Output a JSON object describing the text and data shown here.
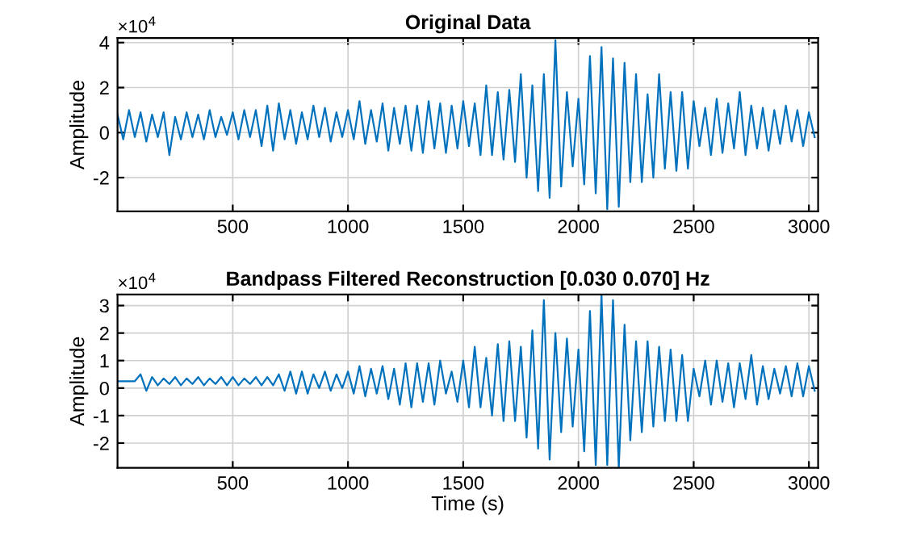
{
  "chart_data": [
    {
      "type": "line",
      "title": "Original Data",
      "ylabel": "Amplitude",
      "annotations": [
        "×10$^{4}$"
      ],
      "x": [
        0,
        25,
        50,
        75,
        100,
        125,
        150,
        175,
        200,
        225,
        250,
        275,
        300,
        325,
        350,
        375,
        400,
        425,
        450,
        475,
        500,
        525,
        550,
        575,
        600,
        625,
        650,
        675,
        700,
        725,
        750,
        775,
        800,
        825,
        850,
        875,
        900,
        925,
        950,
        975,
        1000,
        1025,
        1050,
        1075,
        1100,
        1125,
        1150,
        1175,
        1200,
        1225,
        1250,
        1275,
        1300,
        1325,
        1350,
        1375,
        1400,
        1425,
        1450,
        1475,
        1500,
        1525,
        1550,
        1575,
        1600,
        1625,
        1650,
        1675,
        1700,
        1725,
        1750,
        1775,
        1800,
        1825,
        1850,
        1875,
        1900,
        1925,
        1950,
        1975,
        2000,
        2025,
        2050,
        2075,
        2100,
        2125,
        2150,
        2175,
        2200,
        2225,
        2250,
        2275,
        2300,
        2325,
        2350,
        2375,
        2400,
        2425,
        2450,
        2475,
        2500,
        2525,
        2550,
        2575,
        2600,
        2625,
        2650,
        2675,
        2700,
        2725,
        2750,
        2775,
        2800,
        2825,
        2850,
        2875,
        2900,
        2925,
        2950,
        2975,
        3000,
        3025
      ],
      "series": [
        {
          "color": "#0072bd",
          "values": [
            0.8,
            -0.3,
            1.0,
            -0.2,
            0.9,
            -0.4,
            0.8,
            -0.2,
            0.9,
            -1.0,
            0.7,
            -0.3,
            0.9,
            -0.2,
            0.8,
            -0.3,
            1.0,
            -0.2,
            0.7,
            -0.1,
            0.9,
            -0.3,
            1.0,
            -0.2,
            1.0,
            -0.6,
            1.2,
            -0.8,
            1.3,
            -0.3,
            1.0,
            -0.5,
            0.9,
            -0.3,
            1.2,
            -0.2,
            1.1,
            -0.4,
            0.9,
            -0.2,
            1.0,
            -0.3,
            1.4,
            -0.5,
            1.0,
            -0.4,
            1.3,
            -0.8,
            1.1,
            -0.5,
            1.2,
            -0.8,
            1.2,
            -0.9,
            1.4,
            -0.7,
            1.3,
            -0.9,
            1.2,
            -0.7,
            1.4,
            -0.6,
            1.3,
            -1.0,
            2.1,
            -1.0,
            1.8,
            -1.2,
            1.9,
            -1.3,
            2.6,
            -2.0,
            2.1,
            -2.6,
            2.6,
            -2.9,
            4.1,
            -2.4,
            1.8,
            -1.5,
            1.5,
            -2.3,
            3.4,
            -2.7,
            3.8,
            -3.4,
            3.3,
            -3.3,
            3.1,
            -2.2,
            2.6,
            -2.2,
            1.7,
            -2.0,
            2.6,
            -1.6,
            1.8,
            -1.7,
            1.8,
            -1.6,
            1.4,
            -0.6,
            1.1,
            -1.0,
            1.5,
            -0.9,
            1.3,
            -0.7,
            1.8,
            -1.0,
            1.2,
            -0.7,
            1.1,
            -0.8,
            1.0,
            -0.5,
            1.2,
            -0.4,
            1.0,
            -0.6,
            0.9,
            -0.2
          ]
        }
      ],
      "xlim": [
        0,
        3040
      ],
      "xticks": [
        500,
        1000,
        1500,
        2000,
        2500,
        3000
      ],
      "ylim": [
        -3.5,
        4.2
      ],
      "yticks": [
        -2,
        0,
        2,
        4
      ],
      "grid": true,
      "line_style": "solid",
      "marker": "none"
    },
    {
      "type": "line",
      "title": "Bandpass Filtered Reconstruction [0.030 0.070] Hz",
      "xlabel": "Time (s)",
      "ylabel": "Amplitude",
      "annotations": [
        "×10$^{4}$"
      ],
      "x": [
        0,
        25,
        50,
        75,
        100,
        125,
        150,
        175,
        200,
        225,
        250,
        275,
        300,
        325,
        350,
        375,
        400,
        425,
        450,
        475,
        500,
        525,
        550,
        575,
        600,
        625,
        650,
        675,
        700,
        725,
        750,
        775,
        800,
        825,
        850,
        875,
        900,
        925,
        950,
        975,
        1000,
        1025,
        1050,
        1075,
        1100,
        1125,
        1150,
        1175,
        1200,
        1225,
        1250,
        1275,
        1300,
        1325,
        1350,
        1375,
        1400,
        1425,
        1450,
        1475,
        1500,
        1525,
        1550,
        1575,
        1600,
        1625,
        1650,
        1675,
        1700,
        1725,
        1750,
        1775,
        1800,
        1825,
        1850,
        1875,
        1900,
        1925,
        1950,
        1975,
        2000,
        2025,
        2050,
        2075,
        2100,
        2125,
        2150,
        2175,
        2200,
        2225,
        2250,
        2275,
        2300,
        2325,
        2350,
        2375,
        2400,
        2425,
        2450,
        2475,
        2500,
        2525,
        2550,
        2575,
        2600,
        2625,
        2650,
        2675,
        2700,
        2725,
        2750,
        2775,
        2800,
        2825,
        2850,
        2875,
        2900,
        2925,
        2950,
        2975,
        3000,
        3025
      ],
      "series": [
        {
          "color": "#0072bd",
          "values": [
            0.25,
            0.25,
            0.25,
            0.25,
            0.5,
            -0.1,
            0.4,
            0.1,
            0.35,
            0.15,
            0.4,
            0.1,
            0.35,
            0.15,
            0.4,
            0.1,
            0.35,
            0.15,
            0.4,
            0.1,
            0.4,
            0.1,
            0.35,
            0.15,
            0.4,
            0.1,
            0.4,
            0.1,
            0.5,
            -0.1,
            0.6,
            -0.2,
            0.6,
            -0.2,
            0.5,
            0.0,
            0.6,
            -0.1,
            0.5,
            0.0,
            0.6,
            -0.2,
            0.8,
            -0.3,
            0.7,
            -0.2,
            0.8,
            -0.4,
            0.7,
            -0.6,
            0.9,
            -0.7,
            0.9,
            -0.5,
            0.9,
            -0.6,
            1.0,
            -0.2,
            0.6,
            -0.5,
            1.0,
            -0.7,
            1.5,
            -0.7,
            1.1,
            -1.0,
            1.6,
            -1.2,
            1.7,
            -1.2,
            1.5,
            -1.8,
            2.1,
            -2.2,
            3.2,
            -2.6,
            2.0,
            -1.6,
            1.8,
            -1.4,
            1.4,
            -2.3,
            2.8,
            -2.8,
            3.4,
            -2.8,
            3.2,
            -2.9,
            2.3,
            -1.9,
            1.7,
            -1.6,
            1.7,
            -1.4,
            1.5,
            -1.2,
            1.4,
            -1.2,
            1.2,
            -1.2,
            0.7,
            -0.3,
            1.0,
            -0.6,
            1.0,
            -0.5,
            0.9,
            -0.7,
            0.9,
            -0.4,
            1.2,
            -0.6,
            0.8,
            -0.4,
            0.7,
            -0.2,
            0.8,
            -0.3,
            0.9,
            -0.3,
            0.8,
            -0.1
          ]
        }
      ],
      "xlim": [
        0,
        3040
      ],
      "xticks": [
        500,
        1000,
        1500,
        2000,
        2500,
        3000
      ],
      "ylim": [
        -2.9,
        3.4
      ],
      "yticks": [
        -2,
        -1,
        0,
        1,
        2,
        3
      ],
      "grid": true,
      "line_style": "solid",
      "marker": "none"
    }
  ]
}
